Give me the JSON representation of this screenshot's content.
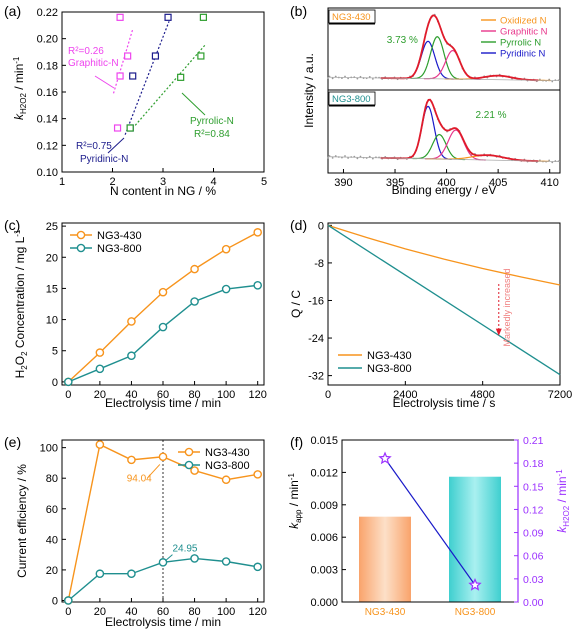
{
  "colors": {
    "orange": "#f7941d",
    "teal": "#1f8f8f",
    "magenta": "#e8378c",
    "purple": "#ee44ee",
    "navy": "#1c1c8c",
    "green": "#2e9e2e",
    "red": "#e01b2b",
    "blue": "#1a1ac9",
    "violet": "#9b30ff",
    "bar_orange": "#f9a36b",
    "bar_teal": "#3fcfcf"
  },
  "chart_data": [
    {
      "panel": "(a)",
      "type": "scatter",
      "xlabel": "N content in NG / %",
      "ylabel": "k_H2O2 / min⁻¹",
      "xlim": [
        1,
        5
      ],
      "ylim": [
        0.1,
        0.22
      ],
      "xticks": [
        "1",
        "2",
        "3",
        "4",
        "5"
      ],
      "yticks": [
        "0.10",
        "0.12",
        "0.14",
        "0.16",
        "0.18",
        "0.20",
        "0.22"
      ],
      "series": [
        {
          "name": "Graphitic-N",
          "color": "#ee44ee",
          "points": [
            [
              2.1,
              0.133
            ],
            [
              2.15,
              0.172
            ],
            [
              2.15,
              0.216
            ],
            [
              2.3,
              0.187
            ]
          ],
          "fit": [
            [
              2.02,
              0.159
            ],
            [
              2.4,
              0.207
            ]
          ]
        },
        {
          "name": "Pyridinic-N",
          "color": "#1c1c8c",
          "points": [
            [
              2.35,
              0.133
            ],
            [
              2.4,
              0.172
            ],
            [
              2.85,
              0.187
            ],
            [
              3.1,
              0.216
            ]
          ],
          "fit": [
            [
              2.25,
              0.128
            ],
            [
              3.12,
              0.213
            ]
          ]
        },
        {
          "name": "Pyrrolic-N",
          "color": "#2e9e2e",
          "points": [
            [
              2.35,
              0.133
            ],
            [
              3.35,
              0.171
            ],
            [
              3.75,
              0.187
            ],
            [
              3.8,
              0.216
            ]
          ],
          "fit": [
            [
              2.45,
              0.135
            ],
            [
              3.85,
              0.196
            ]
          ]
        }
      ],
      "annotations": [
        {
          "text": "R²=0.26",
          "sub": "Graphitic-N",
          "color": "#ee44ee"
        },
        {
          "text": "R²=0.75",
          "sub": "Pyridinic-N",
          "color": "#1c1c8c"
        },
        {
          "text": "Pyrrolic-N",
          "sub": "R²=0.84",
          "color": "#2e9e2e"
        }
      ]
    },
    {
      "panel": "(b)",
      "type": "line",
      "xlabel": "Binding energy / eV",
      "ylabel": "Intensity / a.u.",
      "xlim": [
        388.5,
        411
      ],
      "xticks": [
        "390",
        "395",
        "400",
        "405",
        "410"
      ],
      "samples": [
        {
          "label": "NG3-430",
          "peak_text": "3.73 %",
          "peaks": [
            {
              "name": "Pyridinic N",
              "center": 398.2,
              "height": 0.55,
              "width": 0.65
            },
            {
              "name": "Pyrrolic N",
              "center": 399.1,
              "height": 0.62,
              "width": 0.65
            },
            {
              "name": "Graphitic N",
              "center": 400.6,
              "height": 0.42,
              "width": 0.7
            },
            {
              "name": "Oxidized N",
              "center": 405.0,
              "height": 0.06,
              "width": 1.3
            }
          ]
        },
        {
          "label": "NG3-800",
          "peak_text": "2.21 %",
          "peaks": [
            {
              "name": "Pyridinic N",
              "center": 398.2,
              "height": 0.75,
              "width": 0.6
            },
            {
              "name": "Pyrrolic N",
              "center": 399.3,
              "height": 0.35,
              "width": 0.65
            },
            {
              "name": "Graphitic N",
              "center": 400.9,
              "height": 0.42,
              "width": 0.75
            },
            {
              "name": "Oxidized N",
              "center": 404.0,
              "height": 0.07,
              "width": 1.5
            }
          ]
        }
      ],
      "legend": [
        {
          "name": "Oxidized N",
          "color": "#f7941d"
        },
        {
          "name": "Graphitic N",
          "color": "#e8378c"
        },
        {
          "name": "Pyrrolic N",
          "color": "#2e9e2e"
        },
        {
          "name": "Pyridinic N",
          "color": "#1a1ac9"
        }
      ]
    },
    {
      "panel": "(c)",
      "type": "line",
      "xlabel": "Electrolysis time / min",
      "ylabel": "H₂O₂ Concentration / mg L⁻¹",
      "x": [
        0,
        20,
        40,
        60,
        80,
        100,
        120
      ],
      "xlim": [
        -4,
        124
      ],
      "ylim": [
        -0.5,
        25.5
      ],
      "xticks": [
        "0",
        "20",
        "40",
        "60",
        "80",
        "100",
        "120"
      ],
      "yticks": [
        "0",
        "5",
        "10",
        "15",
        "20",
        "25"
      ],
      "series": [
        {
          "name": "NG3-430",
          "color": "#f7941d",
          "values": [
            0,
            4.7,
            9.7,
            14.4,
            18.1,
            21.3,
            24.0
          ]
        },
        {
          "name": "NG3-800",
          "color": "#1f8f8f",
          "values": [
            0,
            2.1,
            4.2,
            8.8,
            12.9,
            14.9,
            15.5
          ]
        }
      ]
    },
    {
      "panel": "(d)",
      "type": "line",
      "xlabel": "Electrolysis time / s",
      "ylabel": "Q / C",
      "xlim": [
        0,
        7200
      ],
      "ylim": [
        -34,
        0.5
      ],
      "xticks": [
        "0",
        "2400",
        "4800",
        "7200"
      ],
      "yticks": [
        "0",
        "-8",
        "-16",
        "-24",
        "-32"
      ],
      "annotation": "Markedly increased",
      "series": [
        {
          "name": "NG3-430",
          "color": "#f7941d",
          "x": [
            0,
            1200,
            2400,
            3600,
            4800,
            6000,
            7200
          ],
          "values": [
            0,
            -2.6,
            -5.0,
            -7.2,
            -9.2,
            -11.0,
            -12.7
          ]
        },
        {
          "name": "NG3-800",
          "color": "#1f8f8f",
          "x": [
            0,
            7200
          ],
          "values": [
            0,
            -31.8
          ]
        }
      ]
    },
    {
      "panel": "(e)",
      "type": "line",
      "xlabel": "Electrolysis time / min",
      "ylabel": "Current efficiency / %",
      "x": [
        0,
        20,
        40,
        60,
        80,
        100,
        120
      ],
      "xlim": [
        -4,
        124
      ],
      "ylim": [
        -1,
        105
      ],
      "xticks": [
        "0",
        "20",
        "40",
        "60",
        "80",
        "100",
        "120"
      ],
      "yticks": [
        "0",
        "20",
        "40",
        "60",
        "80",
        "100"
      ],
      "vline": 60,
      "labels": [
        "94.04",
        "24.95"
      ],
      "series": [
        {
          "name": "NG3-430",
          "color": "#f7941d",
          "values": [
            0,
            102,
            92,
            94.04,
            85,
            79,
            82.5
          ]
        },
        {
          "name": "NG3-800",
          "color": "#1f8f8f",
          "values": [
            0,
            17.5,
            17.5,
            24.95,
            27.5,
            25.5,
            22
          ]
        }
      ]
    },
    {
      "panel": "(f)",
      "type": "bar",
      "categories": [
        "NG3-430",
        "NG3-800"
      ],
      "ylabel": "k_app / min⁻¹",
      "y2label": "k_H2O2 / min⁻¹",
      "ylim": [
        0,
        0.015
      ],
      "y2lim": [
        0,
        0.21
      ],
      "yticks": [
        "0.000",
        "0.003",
        "0.006",
        "0.009",
        "0.012",
        "0.015"
      ],
      "y2ticks": [
        "0.00",
        "0.03",
        "0.06",
        "0.09",
        "0.12",
        "0.15",
        "0.18",
        "0.21"
      ],
      "bar_values": [
        0.0079,
        0.0116
      ],
      "line_values": [
        0.186,
        0.022
      ]
    }
  ]
}
